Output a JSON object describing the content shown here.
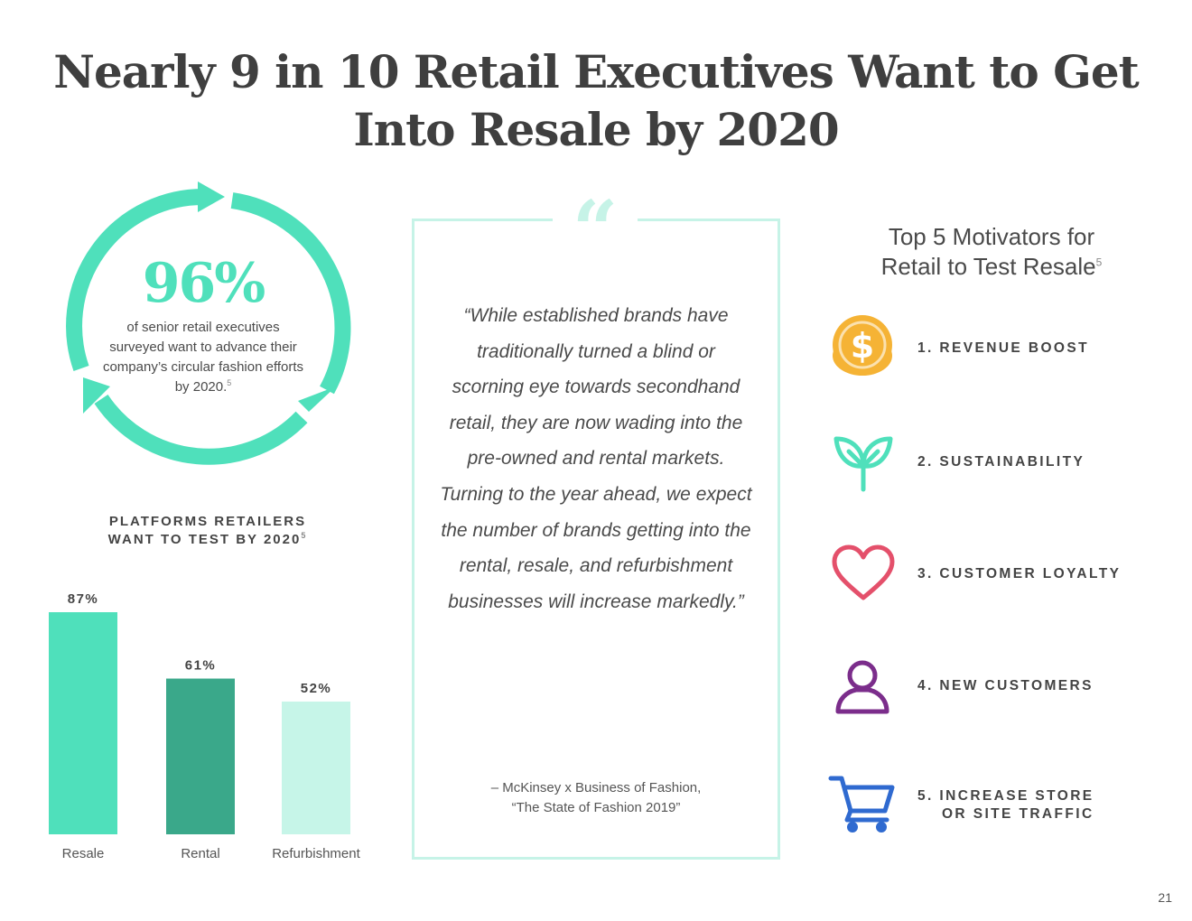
{
  "title": {
    "line1": "Nearly 9 in 10 Retail Executives Want to Get",
    "line2": "Into Resale by 2020"
  },
  "stat": {
    "value": "96%",
    "description": "of senior retail executives surveyed want to advance their company’s circular fashion efforts by 2020.",
    "note": "5",
    "color": "#4fe0bb"
  },
  "platforms": {
    "title_line1": "PLATFORMS RETAILERS",
    "title_line2": "WANT TO TEST BY 2020",
    "note": "5"
  },
  "chart_data": {
    "type": "bar",
    "title": "PLATFORMS RETAILERS WANT TO TEST BY 2020",
    "categories": [
      "Resale",
      "Rental",
      "Refurbishment"
    ],
    "values": [
      87,
      61,
      52
    ],
    "value_labels": [
      "87%",
      "61%",
      "52%"
    ],
    "colors": [
      "#4fe0bb",
      "#3aa88a",
      "#c6f5e8"
    ],
    "ylim": [
      0,
      87
    ],
    "grid": false
  },
  "quote": {
    "mark": "“",
    "text": "“While established brands have traditionally turned a blind or scorning eye towards secondhand retail, they are now wading into the pre-owned and rental markets. Turning to the year ahead, we expect the number of brands getting into the rental, resale, and refurbishment businesses will increase markedly.”",
    "source_line1": "– McKinsey x Business of Fashion,",
    "source_line2": "“The State of Fashion 2019”"
  },
  "motivators": {
    "title_line1": "Top 5 Motivators for",
    "title_line2": "Retail to Test Resale",
    "note": "5",
    "items": [
      {
        "label": "1. REVENUE BOOST",
        "icon": "dollar-coin-icon",
        "color": "#f5b335"
      },
      {
        "label": "2. SUSTAINABILITY",
        "icon": "leaf-sprout-icon",
        "color": "#4fe0bb"
      },
      {
        "label": "3. CUSTOMER LOYALTY",
        "icon": "heart-icon",
        "color": "#e4506b"
      },
      {
        "label": "4. NEW CUSTOMERS",
        "icon": "person-icon",
        "color": "#7b2d8b"
      },
      {
        "label": "5. INCREASE STORE\nOR SITE TRAFFIC",
        "icon": "shopping-cart-icon",
        "color": "#2f6ad0"
      }
    ]
  },
  "page_number": "21"
}
